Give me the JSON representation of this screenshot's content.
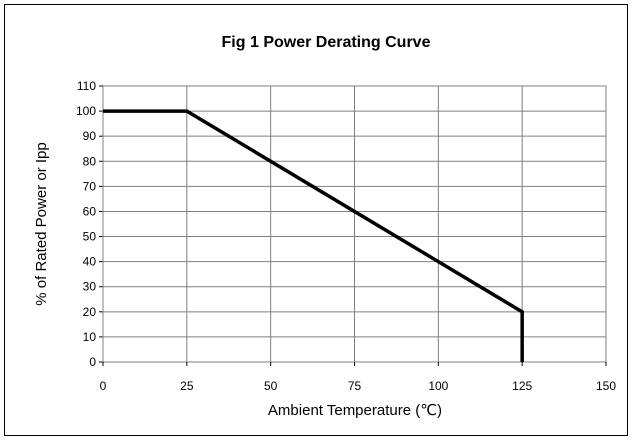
{
  "chart_data": {
    "type": "line",
    "title": "Fig 1 Power Derating Curve",
    "xlabel": "Ambient Temperature (℃)",
    "ylabel": "% of Rated Power or Ipp",
    "xlim": [
      0,
      150
    ],
    "ylim": [
      0,
      110
    ],
    "x_ticks": [
      "0",
      "25",
      "50",
      "75",
      "100",
      "125",
      "150"
    ],
    "y_ticks": [
      "0",
      "10",
      "20",
      "30",
      "40",
      "50",
      "60",
      "70",
      "80",
      "90",
      "100",
      "110"
    ],
    "grid": true,
    "legend": "none",
    "series": [
      {
        "x": [
          0,
          25,
          125,
          125
        ],
        "y": [
          100,
          100,
          20,
          0
        ]
      }
    ],
    "colors": {
      "line": "#000000",
      "grid": "#808080",
      "background": "#ffffff"
    }
  }
}
